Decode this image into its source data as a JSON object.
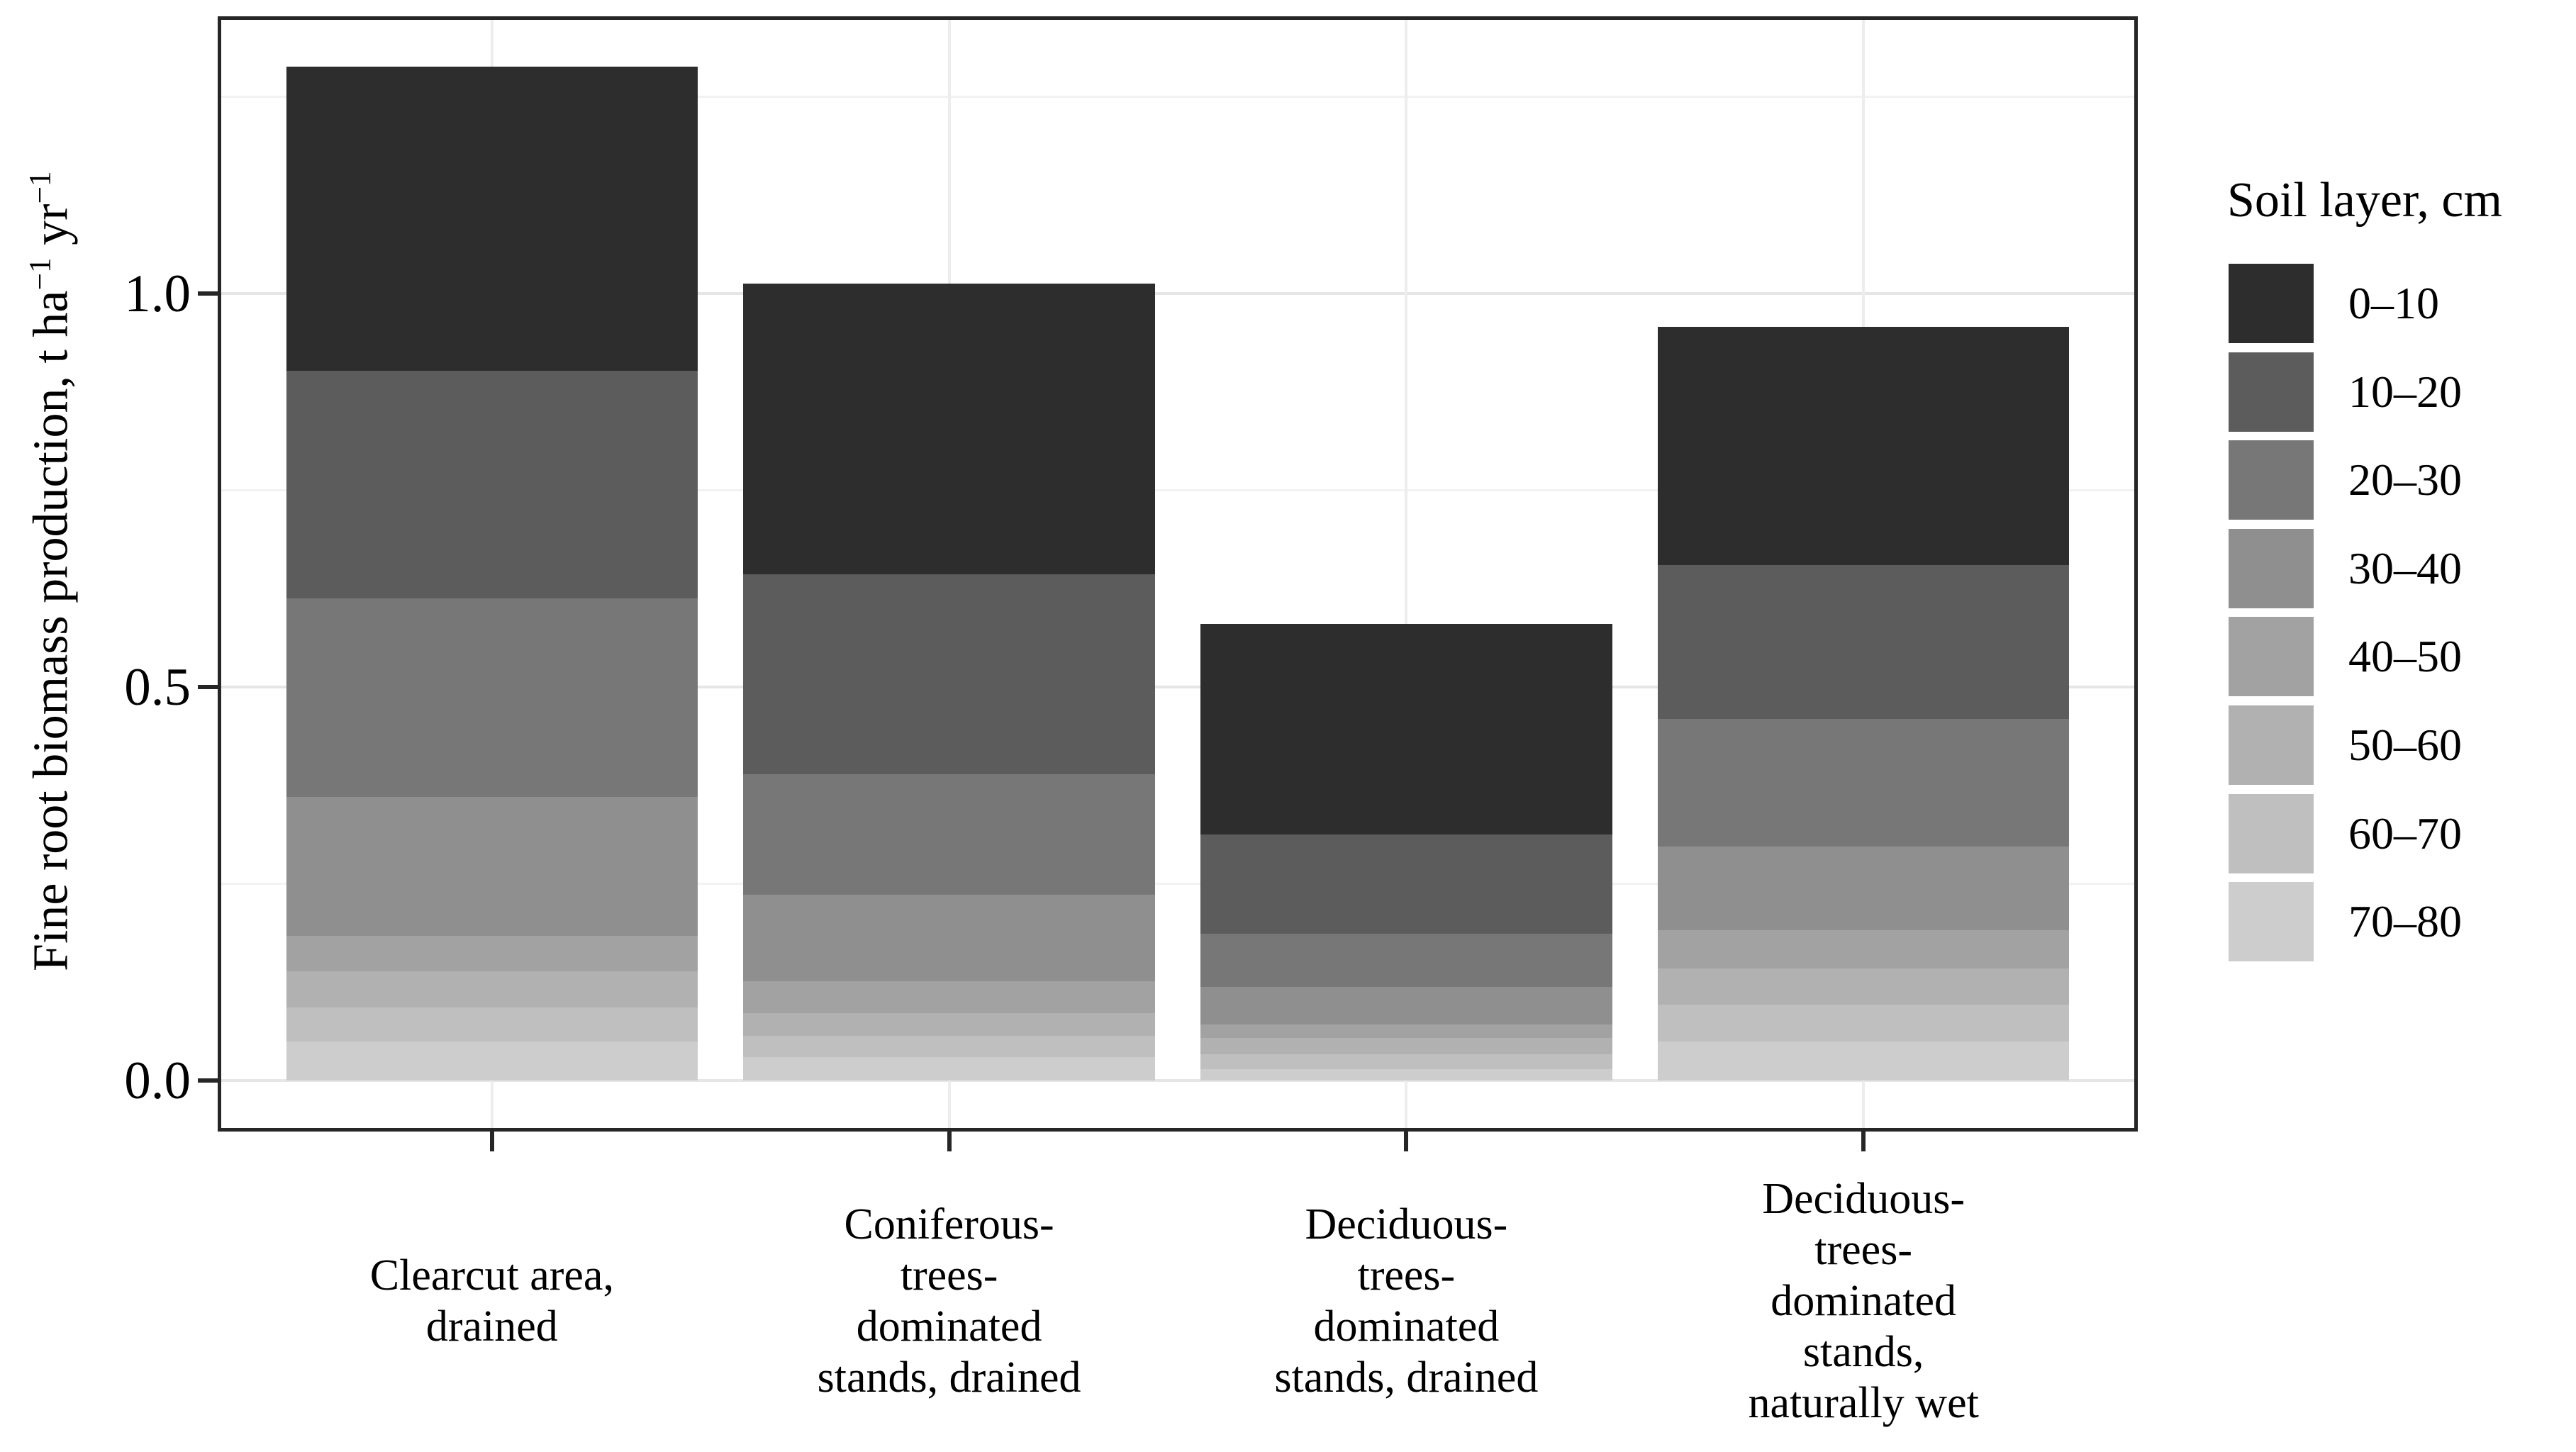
{
  "chart_data": {
    "type": "bar",
    "stacked": true,
    "title": "",
    "xlabel": "",
    "ylabel": "Fine root biomass production, t ha-1 yr-1",
    "ylabel_parts": [
      {
        "t": "Fine root biomass production, t ha"
      },
      {
        "t": "−1",
        "sup": true
      },
      {
        "t": "  yr"
      },
      {
        "t": "−1",
        "sup": true
      }
    ],
    "categories": [
      [
        "Clearcut area,",
        "drained"
      ],
      [
        "Coniferous-",
        "trees-",
        "dominated",
        "stands, drained"
      ],
      [
        "Deciduous-",
        "trees-",
        "dominated",
        "stands, drained"
      ],
      [
        "Deciduous-",
        "trees-",
        "dominated",
        "stands,",
        "naturally wet"
      ]
    ],
    "series": [
      {
        "name": "0–10",
        "color": "#2d2d2d",
        "values": [
          0.386,
          0.369,
          0.268,
          0.302
        ]
      },
      {
        "name": "10–20",
        "color": "#5c5c5c",
        "values": [
          0.29,
          0.254,
          0.126,
          0.196
        ]
      },
      {
        "name": "20–30",
        "color": "#777777",
        "values": [
          0.252,
          0.153,
          0.067,
          0.162
        ]
      },
      {
        "name": "30–40",
        "color": "#8f8f8f",
        "values": [
          0.176,
          0.11,
          0.048,
          0.106
        ]
      },
      {
        "name": "40–50",
        "color": "#a2a2a2",
        "values": [
          0.045,
          0.041,
          0.017,
          0.049
        ]
      },
      {
        "name": "50–60",
        "color": "#b1b1b1",
        "values": [
          0.046,
          0.028,
          0.021,
          0.046
        ]
      },
      {
        "name": "60–70",
        "color": "#bfbfbf",
        "values": [
          0.044,
          0.027,
          0.019,
          0.047
        ]
      },
      {
        "name": "70–80",
        "color": "#cdcdcd",
        "values": [
          0.049,
          0.03,
          0.014,
          0.049
        ]
      }
    ],
    "totals": [
      1.288,
      1.012,
      0.58,
      0.957
    ],
    "y_ticks": [
      {
        "value": 0.0,
        "label": "0.0"
      },
      {
        "value": 0.5,
        "label": "0.5"
      },
      {
        "value": 1.0,
        "label": "1.0"
      }
    ],
    "y_minor": [
      0.25,
      0.75,
      1.25
    ],
    "ylim": [
      -0.065,
      1.352
    ],
    "grid": true,
    "legend_position": "right",
    "legend": {
      "title": "Soil layer, cm"
    },
    "colors": {
      "panel_border": "#262626",
      "grid_major": "#e6e6e6",
      "grid_minor": "#f2f2f2",
      "background": "#ffffff",
      "text": "#000000"
    }
  }
}
